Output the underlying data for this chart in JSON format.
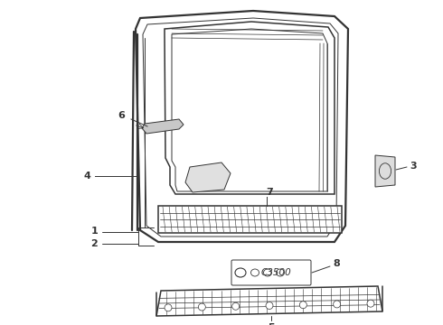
{
  "background_color": "#ffffff",
  "line_color": "#333333",
  "label_color": "#222222",
  "figsize": [
    4.9,
    3.6
  ],
  "dpi": 100
}
